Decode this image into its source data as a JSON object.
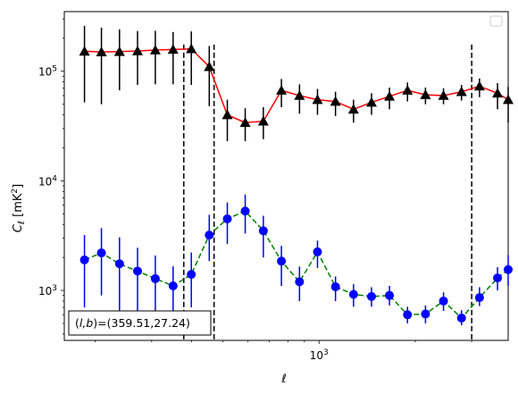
{
  "chart_data": {
    "type": "scatter",
    "xscale": "log",
    "yscale": "log",
    "xlabel": "ℓ",
    "ylabel": "C_ℓ [mK²]",
    "xlim": [
      160,
      3900
    ],
    "ylim": [
      350,
      350000
    ],
    "x_tick_labels": [
      {
        "value": 1000,
        "label": "10³"
      }
    ],
    "y_tick_labels": [
      {
        "value": 1000,
        "label": "10³"
      },
      {
        "value": 10000,
        "label": "10⁴"
      },
      {
        "value": 100000,
        "label": "10⁵"
      }
    ],
    "annotation": "(l, b)=(359.51,27.24)",
    "legend": {
      "placement": "top-right",
      "entries": []
    },
    "vlines": [
      378,
      470,
      3000
    ],
    "series": [
      {
        "marker": "triangle",
        "color": "#ff0000",
        "marker_color": "#000000",
        "line_style": "solid",
        "x": [
          185,
          209,
          238,
          271,
          308,
          350,
          399,
          454,
          517,
          588,
          670,
          763,
          869,
          989,
          1126,
          1282,
          1459,
          1660,
          1890,
          2151,
          2449,
          2788,
          3173,
          3612,
          3900
        ],
        "y": [
          152000,
          150000,
          151000,
          153000,
          156000,
          158000,
          160000,
          110000,
          40000,
          34000,
          35000,
          67000,
          60000,
          55000,
          53000,
          45000,
          52000,
          59000,
          67000,
          61000,
          60000,
          65000,
          73000,
          63000,
          55000
        ],
        "y_err_low": [
          100000,
          100000,
          84000,
          78000,
          80000,
          82000,
          85000,
          62000,
          17000,
          11000,
          11000,
          20000,
          19000,
          15000,
          14000,
          11000,
          12000,
          14000,
          14000,
          11000,
          10000,
          11000,
          15000,
          18000,
          21000
        ],
        "y_err_high": [
          108000,
          100000,
          90000,
          80000,
          78000,
          70000,
          71000,
          60000,
          15000,
          12000,
          12000,
          18000,
          16000,
          14000,
          12000,
          10000,
          11000,
          12000,
          12000,
          10000,
          10000,
          10000,
          13000,
          15000,
          17000
        ]
      },
      {
        "marker": "circle",
        "color": "#008000",
        "marker_color": "#0000ff",
        "line_style": "dashed",
        "x": [
          185,
          209,
          238,
          271,
          308,
          350,
          399,
          454,
          517,
          588,
          670,
          763,
          869,
          989,
          1126,
          1282,
          1459,
          1660,
          1890,
          2151,
          2449,
          2788,
          3173,
          3612,
          3900
        ],
        "y": [
          1900,
          2200,
          1750,
          1500,
          1280,
          1100,
          1400,
          3200,
          4500,
          5300,
          3500,
          1850,
          1200,
          2250,
          1080,
          920,
          880,
          900,
          600,
          610,
          800,
          560,
          860,
          1300,
          1550
        ],
        "y_err_low": [
          1200,
          1300,
          1200,
          900,
          720,
          560,
          700,
          1350,
          1850,
          2000,
          1500,
          750,
          400,
          650,
          280,
          210,
          170,
          170,
          100,
          110,
          150,
          80,
          140,
          300,
          450
        ],
        "y_err_high": [
          1300,
          1500,
          1300,
          950,
          800,
          560,
          820,
          1700,
          1850,
          2200,
          1300,
          700,
          450,
          600,
          260,
          220,
          190,
          200,
          110,
          120,
          160,
          100,
          210,
          330,
          550
        ]
      }
    ]
  }
}
